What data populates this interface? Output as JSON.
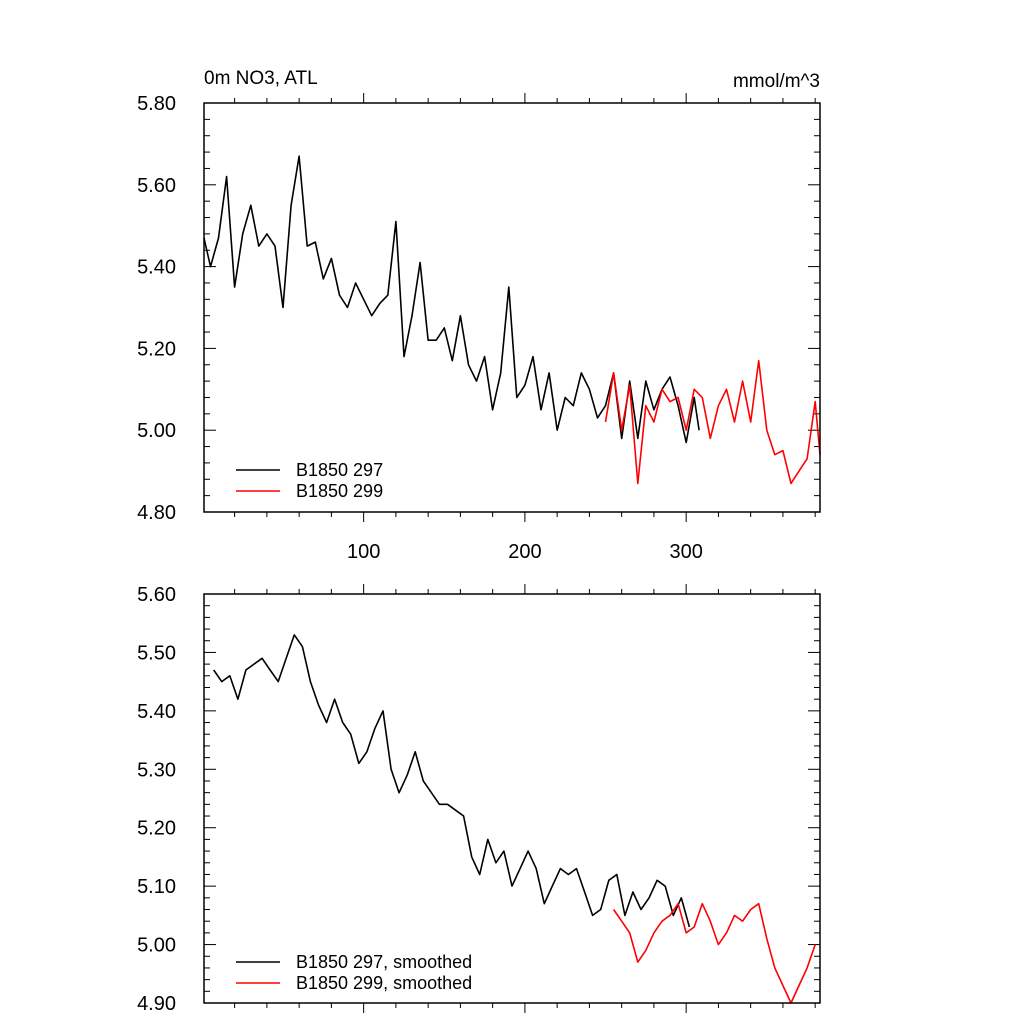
{
  "chart_data": [
    {
      "type": "line",
      "title_left": "0m NO3, ATL",
      "title_right": "mmol/m^3",
      "xlim": [
        1,
        383
      ],
      "ylim": [
        4.8,
        5.8
      ],
      "yticks": [
        4.8,
        5.0,
        5.2,
        5.4,
        5.6,
        5.8
      ],
      "ytick_labels": [
        "4.80",
        "5.00",
        "5.20",
        "5.40",
        "5.60",
        "5.80"
      ],
      "xticks": [
        100,
        200,
        300
      ],
      "xtick_labels": [
        "100",
        "200",
        "300"
      ],
      "legend_position": "bottom-left",
      "series": [
        {
          "name": "B1850 297",
          "color": "#000000",
          "x": [
            1,
            5,
            10,
            15,
            20,
            25,
            30,
            35,
            40,
            45,
            50,
            55,
            60,
            65,
            70,
            75,
            80,
            85,
            90,
            95,
            100,
            105,
            110,
            115,
            120,
            125,
            130,
            135,
            140,
            145,
            150,
            155,
            160,
            165,
            170,
            175,
            180,
            185,
            190,
            195,
            200,
            205,
            210,
            215,
            220,
            225,
            230,
            235,
            240,
            245,
            250,
            255,
            260,
            265,
            270,
            275,
            280,
            285,
            290,
            295,
            300,
            305,
            308
          ],
          "y": [
            5.47,
            5.4,
            5.47,
            5.62,
            5.35,
            5.48,
            5.55,
            5.45,
            5.48,
            5.45,
            5.3,
            5.55,
            5.67,
            5.45,
            5.46,
            5.37,
            5.42,
            5.33,
            5.3,
            5.36,
            5.32,
            5.28,
            5.31,
            5.33,
            5.51,
            5.18,
            5.28,
            5.41,
            5.22,
            5.22,
            5.25,
            5.17,
            5.28,
            5.16,
            5.12,
            5.18,
            5.05,
            5.14,
            5.35,
            5.08,
            5.11,
            5.18,
            5.05,
            5.14,
            5.0,
            5.08,
            5.06,
            5.14,
            5.1,
            5.03,
            5.06,
            5.14,
            4.98,
            5.12,
            4.98,
            5.12,
            5.05,
            5.1,
            5.13,
            5.06,
            4.97,
            5.08,
            5.0
          ]
        },
        {
          "name": "B1850 299",
          "color": "#ff0000",
          "x": [
            250,
            255,
            260,
            265,
            270,
            275,
            280,
            285,
            290,
            295,
            300,
            305,
            310,
            315,
            320,
            325,
            330,
            335,
            340,
            345,
            350,
            355,
            360,
            365,
            370,
            375,
            380,
            383
          ],
          "y": [
            5.02,
            5.14,
            5.0,
            5.11,
            4.87,
            5.06,
            5.02,
            5.1,
            5.07,
            5.08,
            5.0,
            5.1,
            5.08,
            4.98,
            5.06,
            5.1,
            5.02,
            5.12,
            5.02,
            5.17,
            5.0,
            4.94,
            4.95,
            4.87,
            4.9,
            4.93,
            5.07,
            4.94
          ]
        }
      ]
    },
    {
      "type": "line",
      "xlim": [
        1,
        383
      ],
      "ylim": [
        4.9,
        5.6
      ],
      "yticks": [
        4.9,
        5.0,
        5.1,
        5.2,
        5.3,
        5.4,
        5.5,
        5.6
      ],
      "ytick_labels": [
        "4.90",
        "5.00",
        "5.10",
        "5.20",
        "5.30",
        "5.40",
        "5.50",
        "5.60"
      ],
      "xticks": [
        100,
        200,
        300
      ],
      "legend_position": "bottom-left",
      "series": [
        {
          "name": "B1850 297, smoothed",
          "color": "#000000",
          "x": [
            7,
            12,
            17,
            22,
            27,
            32,
            37,
            42,
            47,
            52,
            57,
            62,
            67,
            72,
            77,
            82,
            87,
            92,
            97,
            102,
            107,
            112,
            117,
            122,
            127,
            132,
            137,
            142,
            147,
            152,
            157,
            162,
            167,
            172,
            177,
            182,
            187,
            192,
            197,
            202,
            207,
            212,
            217,
            222,
            227,
            232,
            237,
            242,
            247,
            252,
            257,
            262,
            267,
            272,
            277,
            282,
            287,
            292,
            297,
            302
          ],
          "y": [
            5.47,
            5.45,
            5.46,
            5.42,
            5.47,
            5.48,
            5.49,
            5.47,
            5.45,
            5.49,
            5.53,
            5.51,
            5.45,
            5.41,
            5.38,
            5.42,
            5.38,
            5.36,
            5.31,
            5.33,
            5.37,
            5.4,
            5.3,
            5.26,
            5.29,
            5.33,
            5.28,
            5.26,
            5.24,
            5.24,
            5.23,
            5.22,
            5.15,
            5.12,
            5.18,
            5.14,
            5.16,
            5.1,
            5.13,
            5.16,
            5.13,
            5.07,
            5.1,
            5.13,
            5.12,
            5.13,
            5.09,
            5.05,
            5.06,
            5.11,
            5.12,
            5.05,
            5.09,
            5.06,
            5.08,
            5.11,
            5.1,
            5.05,
            5.08,
            5.03
          ]
        },
        {
          "name": "B1850 299, smoothed",
          "color": "#ff0000",
          "x": [
            255,
            260,
            265,
            270,
            275,
            280,
            285,
            290,
            295,
            300,
            305,
            310,
            315,
            320,
            325,
            330,
            335,
            340,
            345,
            350,
            355,
            360,
            365,
            370,
            375,
            380
          ],
          "y": [
            5.06,
            5.04,
            5.02,
            4.97,
            4.99,
            5.02,
            5.04,
            5.05,
            5.07,
            5.02,
            5.03,
            5.07,
            5.04,
            5.0,
            5.02,
            5.05,
            5.04,
            5.06,
            5.07,
            5.01,
            4.96,
            4.93,
            4.9,
            4.93,
            4.96,
            5.0
          ]
        }
      ]
    }
  ]
}
